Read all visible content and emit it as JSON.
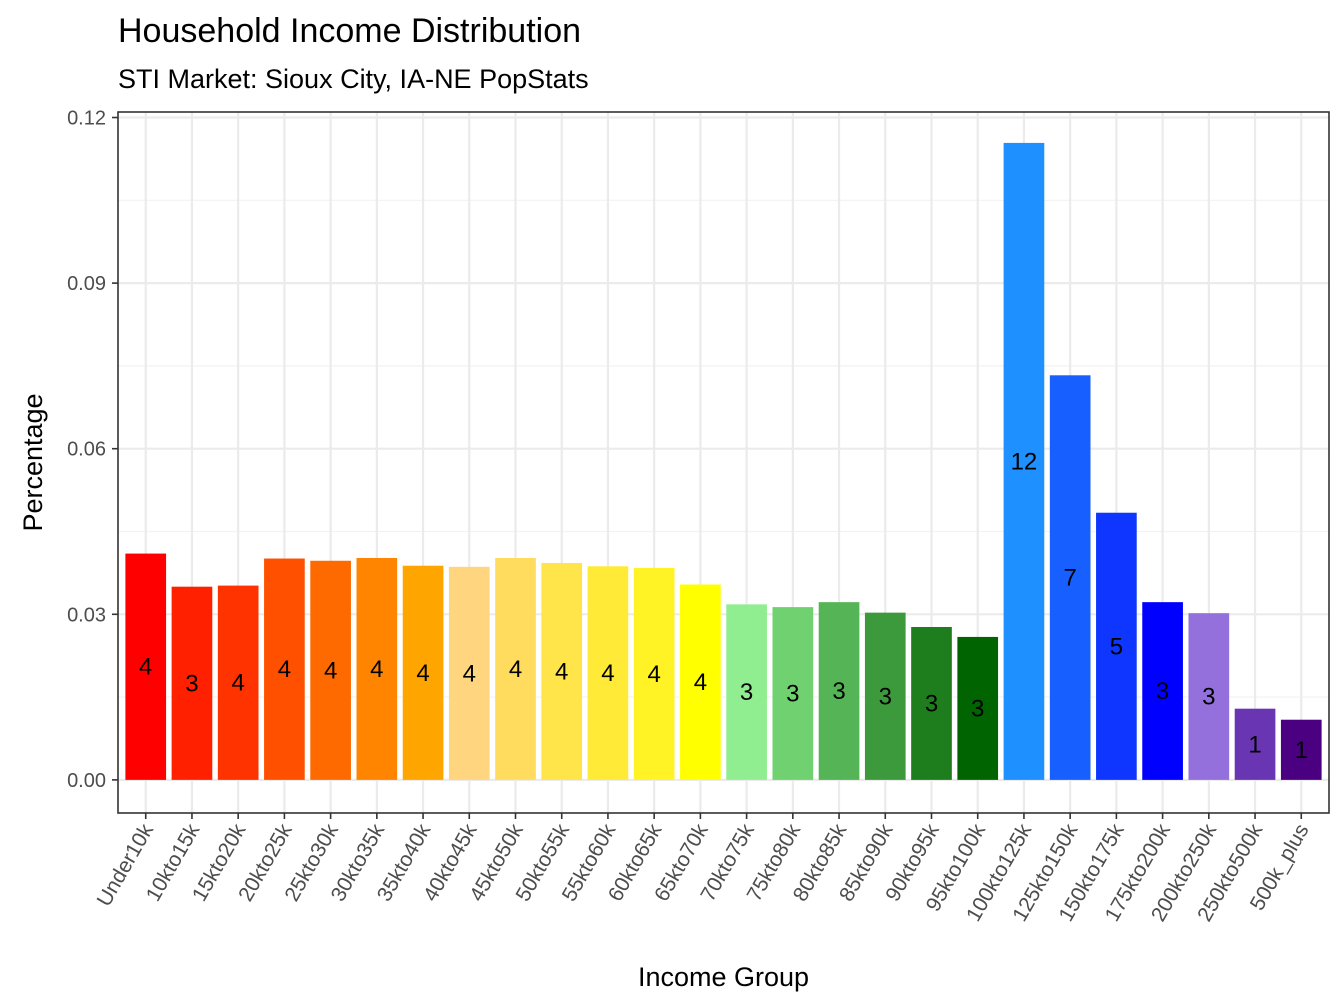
{
  "chart_data": {
    "type": "bar",
    "title": "Household Income Distribution",
    "subtitle": "STI Market: Sioux City, IA-NE PopStats",
    "xlabel": "Income Group",
    "ylabel": "Percentage",
    "ylim": [
      -0.006,
      0.121
    ],
    "yticks": [
      "0.00",
      "0.03",
      "0.06",
      "0.09",
      "0.12"
    ],
    "categories": [
      "Under10k",
      "10kto15k",
      "15kto20k",
      "20kto25k",
      "25kto30k",
      "30kto35k",
      "35kto40k",
      "40kto45k",
      "45kto50k",
      "50kto55k",
      "55kto60k",
      "60kto65k",
      "65kto70k",
      "70kto75k",
      "75kto80k",
      "80kto85k",
      "85kto90k",
      "90kto95k",
      "95kto100k",
      "100kto125k",
      "125kto150k",
      "150kto175k",
      "175kto200k",
      "200kto250k",
      "250kto500k",
      "500k_plus"
    ],
    "values": [
      0.041,
      0.035,
      0.0352,
      0.0401,
      0.0397,
      0.0402,
      0.0388,
      0.0386,
      0.0402,
      0.0393,
      0.0387,
      0.0384,
      0.0354,
      0.0318,
      0.0313,
      0.0322,
      0.0303,
      0.0277,
      0.0259,
      0.1154,
      0.0733,
      0.0484,
      0.0322,
      0.0302,
      0.0129,
      0.0109
    ],
    "labels": [
      "4",
      "3",
      "4",
      "4",
      "4",
      "4",
      "4",
      "4",
      "4",
      "4",
      "4",
      "4",
      "4",
      "3",
      "3",
      "3",
      "3",
      "3",
      "3",
      "12",
      "7",
      "5",
      "3",
      "3",
      "1",
      "1"
    ],
    "colors": [
      "#FF0000",
      "#FF2000",
      "#FF3300",
      "#FF5000",
      "#FF6A00",
      "#FF8400",
      "#FFA500",
      "#FFD580",
      "#FFDC5E",
      "#FFE44A",
      "#FFEA38",
      "#FFF225",
      "#FFFF00",
      "#90EE90",
      "#70D170",
      "#55B455",
      "#3C9A3C",
      "#1E7E1E",
      "#006400",
      "#1E90FF",
      "#1760FF",
      "#0E36FF",
      "#0000FF",
      "#9370DB",
      "#6A35B3",
      "#4B0082"
    ],
    "grid": true,
    "legend": "none"
  }
}
